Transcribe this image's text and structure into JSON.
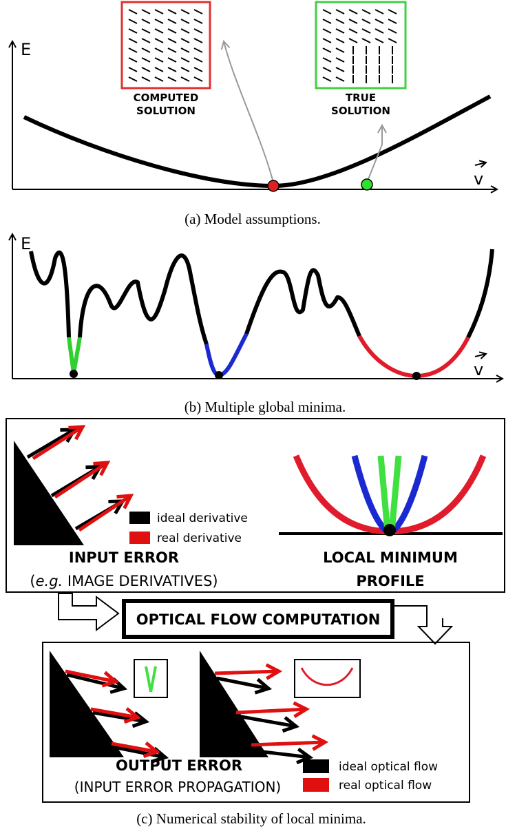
{
  "panel_a": {
    "y_axis": "E",
    "x_axis": "v",
    "computed_solution": [
      "COMPUTED",
      "SOLUTION"
    ],
    "true_solution": [
      "TRUE",
      "SOLUTION"
    ],
    "caption": "(a) Model assumptions."
  },
  "panel_b": {
    "y_axis": "E",
    "x_axis": "v",
    "caption": "(b) Multiple global minima."
  },
  "panel_c": {
    "legend_input": [
      "ideal derivative",
      "real derivative"
    ],
    "input_error": "INPUT ERROR",
    "input_error_note": [
      "(",
      "e.g.",
      "IMAGE DERIVATIVES)"
    ],
    "local_minimum_profile": [
      "LOCAL MINIMUM",
      "PROFILE"
    ],
    "computation": "OPTICAL FLOW COMPUTATION",
    "output_error": "OUTPUT ERROR",
    "output_error_note": "(INPUT ERROR PROPAGATION)",
    "legend_output": [
      "ideal optical flow",
      "real optical flow"
    ],
    "caption": "(c) Numerical stability of local minima."
  }
}
